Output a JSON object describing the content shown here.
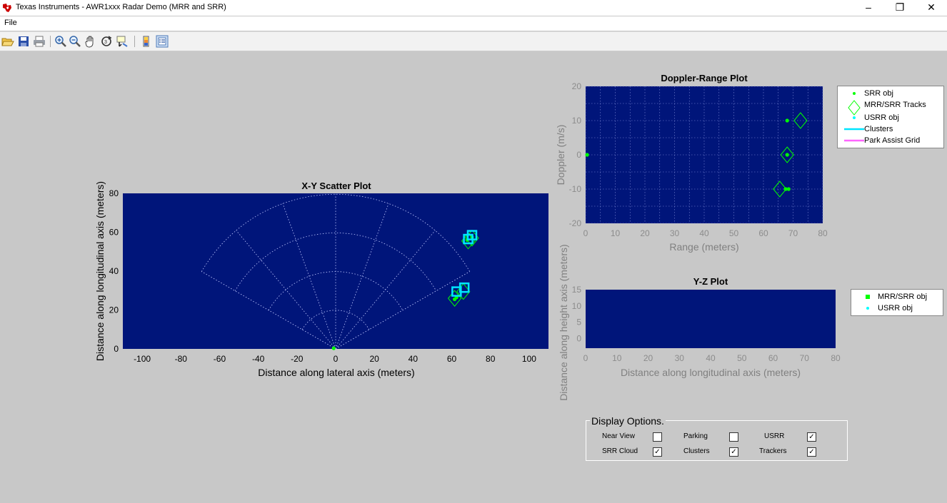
{
  "window": {
    "title": "Texas Instruments - AWR1xxx Radar Demo (MRR and SRR)",
    "controls": [
      "–",
      "❐",
      "✕"
    ]
  },
  "menu": [
    "File"
  ],
  "toolbar": {
    "icons": [
      "open-icon",
      "save-icon",
      "print-icon",
      "zoom-in-icon",
      "zoom-out-icon",
      "pan-icon",
      "rotate-icon",
      "data-cursor-icon",
      "colorbar-icon",
      "legend-icon"
    ]
  },
  "colors": {
    "plot_bg": "#00157a",
    "srr_obj": "#00ff00",
    "usrr_obj": "#00ffff",
    "cluster": "#00e5ff",
    "park_grid": "#ff66ff",
    "tracks": "#00ff00",
    "figure_bg": "#c8c8c8"
  },
  "chart_data": [
    {
      "type": "scatter",
      "title": "X-Y Scatter Plot",
      "xlabel": "Distance along lateral axis (meters)",
      "ylabel": "Distance along longitudinal axis (meters)",
      "xlim": [
        -110,
        110
      ],
      "ylim": [
        0,
        80
      ],
      "xticks": [
        -100,
        -80,
        -60,
        -40,
        -20,
        0,
        20,
        40,
        60,
        80,
        100
      ],
      "yticks": [
        0,
        20,
        40,
        60,
        80
      ],
      "radar_grid": {
        "ranges": [
          20,
          40,
          60,
          80
        ],
        "fov_deg": 60
      },
      "series": [
        {
          "symbol": "dot",
          "color": "#00ff00",
          "points": [
            [
              -1,
              0.3
            ],
            [
              61.5,
              25.5
            ],
            [
              62.5,
              26.5
            ],
            [
              68,
              56
            ],
            [
              70.5,
              57.5
            ]
          ]
        },
        {
          "symbol": "diamond",
          "color": "#00ff00",
          "points": [
            [
              61.5,
              26
            ],
            [
              66,
              29.5
            ],
            [
              68.5,
              55.5
            ],
            [
              70.5,
              57
            ]
          ]
        },
        {
          "symbol": "square",
          "color": "#00e5ff",
          "points": [
            [
              62.5,
              29.5
            ],
            [
              66.5,
              31.5
            ],
            [
              68.5,
              56.5
            ],
            [
              70.5,
              58.5
            ]
          ]
        }
      ]
    },
    {
      "type": "scatter",
      "title": "Doppler-Range Plot",
      "xlabel": "Range (meters)",
      "ylabel": "Doppler (m/s)",
      "xlim": [
        0,
        80
      ],
      "ylim": [
        -20,
        20
      ],
      "xticks": [
        0,
        10,
        20,
        30,
        40,
        50,
        60,
        70,
        80
      ],
      "yticks": [
        -20,
        -10,
        0,
        10,
        20
      ],
      "series": [
        {
          "name": "SRR obj",
          "symbol": "dot",
          "color": "#00ff00",
          "points": [
            [
              0.5,
              0
            ],
            [
              67.5,
              -10
            ],
            [
              68.5,
              -10
            ],
            [
              68,
              0
            ],
            [
              68,
              10
            ]
          ]
        },
        {
          "name": "MRR/SRR Tracks",
          "symbol": "diamond",
          "color": "#00ff00",
          "points": [
            [
              65.5,
              -10
            ],
            [
              68,
              0
            ],
            [
              72.5,
              10
            ]
          ]
        },
        {
          "name": "USRR obj",
          "symbol": "dot",
          "color": "#00ffff",
          "points": []
        },
        {
          "name": "Clusters",
          "symbol": "line",
          "color": "#00e5ff",
          "points": []
        },
        {
          "name": "Park Assist Grid",
          "symbol": "line",
          "color": "#ff66ff",
          "points": []
        }
      ]
    },
    {
      "type": "scatter",
      "title": "Y-Z Plot",
      "xlabel": "Distance along longitudinal axis (meters)",
      "ylabel": "Distance along height axis (meters)",
      "xlim": [
        0,
        80
      ],
      "ylim": [
        -3,
        15
      ],
      "xticks": [
        0,
        10,
        20,
        30,
        40,
        50,
        60,
        70,
        80
      ],
      "yticks": [
        0,
        5,
        10,
        15
      ],
      "series": [
        {
          "name": "MRR/SRR obj",
          "symbol": "square",
          "color": "#00ff00",
          "points": []
        },
        {
          "name": "USRR obj",
          "symbol": "dot",
          "color": "#00ffff",
          "points": []
        }
      ]
    }
  ],
  "display_options": {
    "title": "Display Options.",
    "items": [
      {
        "label": "Near View",
        "checked": false,
        "check": ""
      },
      {
        "label": "Parking",
        "checked": false,
        "check": ""
      },
      {
        "label": "USRR",
        "checked": true,
        "check": "✓"
      },
      {
        "label": "SRR Cloud",
        "checked": true,
        "check": "✓"
      },
      {
        "label": "Clusters",
        "checked": true,
        "check": "✓"
      },
      {
        "label": "Trackers",
        "checked": true,
        "check": "✓"
      }
    ]
  }
}
